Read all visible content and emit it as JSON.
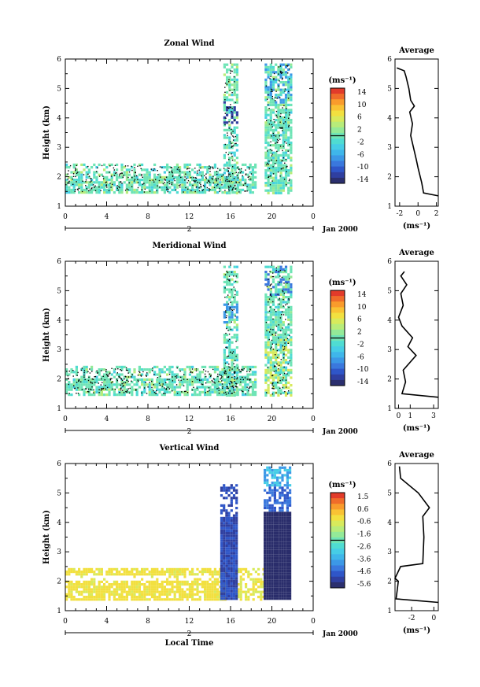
{
  "colors": {
    "colorbar_stops": [
      "#2b2f6e",
      "#2f3fa0",
      "#2f56c8",
      "#3a78dd",
      "#3c98e6",
      "#3fb6ea",
      "#46cde6",
      "#4fdcd2",
      "#6fe4b6",
      "#94ea98",
      "#b8ec7a",
      "#d8ea5c",
      "#f2e040",
      "#f9c234",
      "#f99b2c",
      "#f06c2a",
      "#e23b2a"
    ],
    "wind_fill": "#5fe0c0",
    "vertical_fill": "#f6cc3a",
    "vertical_dark": "#2a2d6b"
  },
  "chart_data": [
    {
      "type": "heatmap",
      "title": "Zonal Wind",
      "xlabel": "",
      "ylabel": "Height (km)",
      "xlim": [
        0,
        24
      ],
      "ylim": [
        1,
        6
      ],
      "xticks": [
        "0",
        "4",
        "8",
        "12",
        "16",
        "20",
        "0"
      ],
      "yticks": [
        "1",
        "2",
        "3",
        "4",
        "5",
        "6"
      ],
      "day_label": "2",
      "date_label": "Jan 2000",
      "colorbar": {
        "unit": "(ms⁻¹)",
        "ticks": [
          "14",
          "10",
          "6",
          "2",
          "-2",
          "-6",
          "-10",
          "-14"
        ]
      },
      "average": {
        "title": "Average",
        "xlabel": "(ms⁻¹)",
        "xticks": [
          "-2",
          "0",
          "2"
        ],
        "xlim": [
          -2.5,
          2.2
        ],
        "profile": [
          [
            2.2,
            1.35
          ],
          [
            0.6,
            1.45
          ],
          [
            0.4,
            1.8
          ],
          [
            0.0,
            2.3
          ],
          [
            -0.2,
            2.6
          ],
          [
            -0.5,
            3.0
          ],
          [
            -0.8,
            3.4
          ],
          [
            -0.6,
            3.8
          ],
          [
            -0.9,
            4.2
          ],
          [
            -0.4,
            4.4
          ],
          [
            -0.8,
            4.6
          ],
          [
            -1.0,
            5.0
          ],
          [
            -1.3,
            5.4
          ],
          [
            -1.5,
            5.6
          ],
          [
            -2.3,
            5.7
          ]
        ]
      }
    },
    {
      "type": "heatmap",
      "title": "Meridional Wind",
      "xlabel": "",
      "ylabel": "Height (km)",
      "xlim": [
        0,
        24
      ],
      "ylim": [
        1,
        6
      ],
      "xticks": [
        "0",
        "4",
        "8",
        "12",
        "16",
        "20",
        "0"
      ],
      "yticks": [
        "1",
        "2",
        "3",
        "4",
        "5",
        "6"
      ],
      "day_label": "2",
      "date_label": "Jan 2000",
      "colorbar": {
        "unit": "(ms⁻¹)",
        "ticks": [
          "14",
          "10",
          "6",
          "2",
          "-2",
          "-6",
          "-10",
          "-14"
        ]
      },
      "average": {
        "title": "Average",
        "xlabel": "(ms⁻¹)",
        "xticks": [
          "0",
          "1",
          "3"
        ],
        "xlim": [
          -0.3,
          3.4
        ],
        "profile": [
          [
            3.4,
            1.38
          ],
          [
            0.3,
            1.5
          ],
          [
            0.6,
            1.9
          ],
          [
            0.4,
            2.3
          ],
          [
            1.5,
            2.8
          ],
          [
            0.8,
            3.1
          ],
          [
            1.2,
            3.4
          ],
          [
            0.3,
            3.8
          ],
          [
            0.0,
            4.1
          ],
          [
            0.4,
            4.5
          ],
          [
            0.2,
            4.9
          ],
          [
            0.7,
            5.2
          ],
          [
            0.2,
            5.5
          ],
          [
            0.5,
            5.65
          ]
        ]
      }
    },
    {
      "type": "heatmap",
      "title": "Vertical Wind",
      "xlabel": "Local Time",
      "ylabel": "Height (km)",
      "xlim": [
        0,
        24
      ],
      "ylim": [
        1,
        6
      ],
      "xticks": [
        "0",
        "4",
        "8",
        "12",
        "16",
        "20",
        "0"
      ],
      "yticks": [
        "1",
        "2",
        "3",
        "4",
        "5",
        "6"
      ],
      "day_label": "2",
      "date_label": "Jan 2000",
      "colorbar": {
        "unit": "(ms⁻¹)",
        "ticks": [
          "1.5",
          "0.6",
          "-0.6",
          "-1.6",
          "-2.6",
          "-3.6",
          "-4.6",
          "-5.6"
        ]
      },
      "average": {
        "title": "Average",
        "xlabel": "(ms⁻¹)",
        "xticks": [
          "0",
          "-2"
        ],
        "xlim": [
          -3.5,
          0.4
        ],
        "profile": [
          [
            0.4,
            1.28
          ],
          [
            -3.4,
            1.4
          ],
          [
            -3.2,
            2.0
          ],
          [
            -3.5,
            2.1
          ],
          [
            -3.0,
            2.5
          ],
          [
            -1.0,
            2.6
          ],
          [
            -0.9,
            3.5
          ],
          [
            -1.0,
            4.2
          ],
          [
            -0.4,
            4.5
          ],
          [
            -1.4,
            5.0
          ],
          [
            -3.0,
            5.5
          ],
          [
            -3.1,
            5.9
          ]
        ]
      }
    }
  ]
}
